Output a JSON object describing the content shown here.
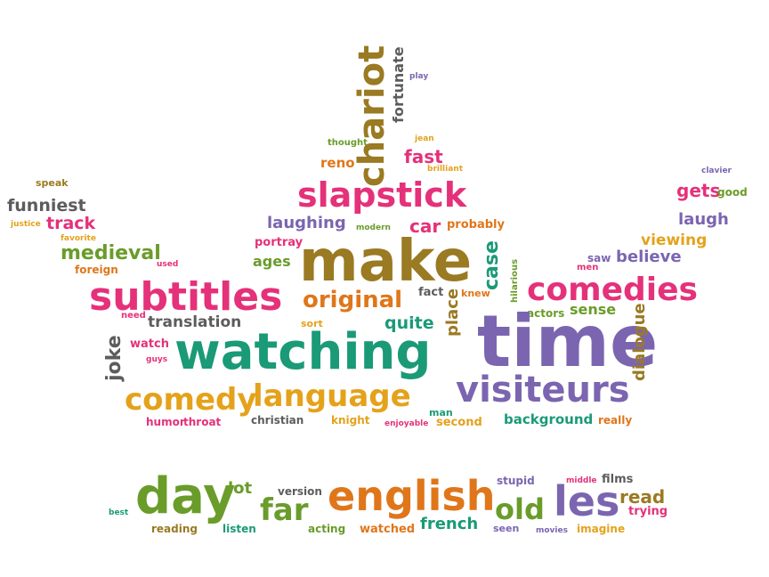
{
  "palette": {
    "pink": "#e5317a",
    "purple": "#7b65b0",
    "green": "#6a9c2a",
    "teal": "#1a9a77",
    "orange": "#e0761a",
    "gold": "#e4a21b",
    "brown": "#9a7a22",
    "gray": "#5c5c5c"
  },
  "words": {
    "chariot": "chariot",
    "fortunate": "fortunate",
    "play": "play",
    "thought": "thought",
    "jean": "jean",
    "reno": "reno",
    "fast": "fast",
    "brilliant": "brilliant",
    "speak": "speak",
    "funniest": "funniest",
    "justice": "justice",
    "track": "track",
    "favorite": "favorite",
    "medieval": "medieval",
    "foreign": "foreign",
    "used": "used",
    "slapstick": "slapstick",
    "laughing": "laughing",
    "modern": "modern",
    "car": "car",
    "probably": "probably",
    "clavier": "clavier",
    "gets": "gets",
    "good": "good",
    "laugh": "laugh",
    "viewing": "viewing",
    "portray": "portray",
    "ages": "ages",
    "make": "make",
    "case": "case",
    "saw": "saw",
    "believe": "believe",
    "men": "men",
    "subtitles": "subtitles",
    "original": "original",
    "fact": "fact",
    "place": "place",
    "knew": "knew",
    "hilarious": "hilarious",
    "comedies": "comedies",
    "need": "need",
    "translation": "translation",
    "sort": "sort",
    "quite": "quite",
    "actors": "actors",
    "sense": "sense",
    "joke": "joke",
    "watch": "watch",
    "guys": "guys",
    "watching": "watching",
    "time": "time",
    "dialogue": "dialogue",
    "comedy": "comedy",
    "language": "language",
    "visiteurs": "visiteurs",
    "humor": "humor",
    "throat": "throat",
    "christian": "christian",
    "knight": "knight",
    "enjoyable": "enjoyable",
    "man": "man",
    "second": "second",
    "background": "background",
    "really": "really",
    "stupid": "stupid",
    "middle": "middle",
    "films": "films",
    "day": "day",
    "lot": "lot",
    "version": "version",
    "english": "english",
    "old": "old",
    "les": "les",
    "read": "read",
    "trying": "trying",
    "best": "best",
    "far": "far",
    "reading": "reading",
    "listen": "listen",
    "acting": "acting",
    "watched": "watched",
    "french": "french",
    "seen": "seen",
    "movies": "movies",
    "imagine": "imagine"
  }
}
